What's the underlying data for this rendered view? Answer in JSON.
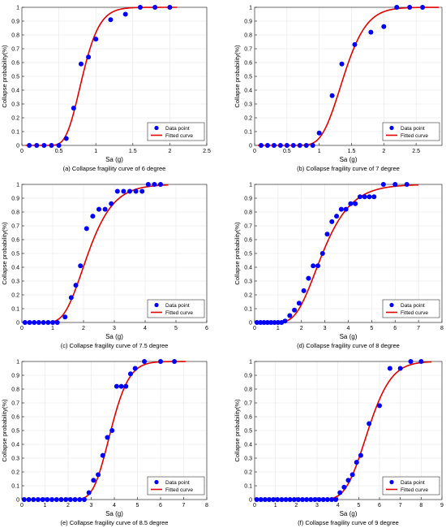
{
  "chart_data": [
    {
      "type": "scatter",
      "caption": "(a) Collapse fragility curve of 6 degree",
      "xlabel": "Sa (g)",
      "ylabel": "Collapse probability(%)",
      "xlim": [
        0,
        2.5
      ],
      "xticks": [
        0,
        0.5,
        1,
        1.5,
        2,
        2.5
      ],
      "xticklabels": [
        "0",
        "0.5",
        "1",
        "1.5",
        "2",
        "2.5"
      ],
      "ylim": [
        0,
        1
      ],
      "yticks": [
        0,
        0.1,
        0.2,
        0.3,
        0.4,
        0.5,
        0.6,
        0.7,
        0.8,
        0.9,
        1
      ],
      "yticklabels": [
        "0",
        "0.1",
        "0.2",
        "0.3",
        "0.4",
        "0.5",
        "0.6",
        "0.7",
        "0.8",
        "0.9",
        "1"
      ],
      "grid": true,
      "legend_position": "bottom-right",
      "series": [
        {
          "name": "Data point",
          "kind": "markers",
          "color": "#0000ff",
          "x": [
            0.1,
            0.2,
            0.3,
            0.4,
            0.5,
            0.6,
            0.7,
            0.8,
            0.9,
            1.0,
            1.2,
            1.4,
            1.6,
            1.8,
            2.0
          ],
          "y": [
            0,
            0,
            0,
            0,
            0,
            0.05,
            0.27,
            0.59,
            0.64,
            0.77,
            0.91,
            0.95,
            1,
            1,
            1
          ]
        },
        {
          "name": "Fitted curve",
          "kind": "line",
          "color": "#e00000",
          "lognormal": {
            "median": 0.82,
            "beta": 0.22,
            "x_start": 0.05,
            "x_end": 2.1
          }
        }
      ]
    },
    {
      "type": "scatter",
      "caption": "(b) Collapse fragility curve of 7 degree",
      "xlabel": "Sa (g)",
      "ylabel": "Collapse probability(%)",
      "xlim": [
        0,
        2.9
      ],
      "xticks": [
        0,
        0.5,
        1,
        1.5,
        2,
        2.5
      ],
      "xticklabels": [
        "0",
        "0.5",
        "1",
        "1.5",
        "2",
        "2.5"
      ],
      "ylim": [
        0,
        1
      ],
      "yticks": [
        0,
        0.1,
        0.2,
        0.3,
        0.4,
        0.5,
        0.6,
        0.7,
        0.8,
        0.9,
        1
      ],
      "yticklabels": [
        "0",
        "0.1",
        "0.2",
        "0.3",
        "0.4",
        "0.5",
        "0.6",
        "0.7",
        "0.8",
        "0.9",
        "1"
      ],
      "grid": true,
      "legend_position": "bottom-right",
      "series": [
        {
          "name": "Data point",
          "kind": "markers",
          "color": "#0000ff",
          "x": [
            0.1,
            0.2,
            0.3,
            0.4,
            0.5,
            0.6,
            0.7,
            0.8,
            0.9,
            1.0,
            1.2,
            1.35,
            1.55,
            1.8,
            2.0,
            2.2,
            2.4,
            2.6
          ],
          "y": [
            0,
            0,
            0,
            0,
            0,
            0,
            0,
            0,
            0,
            0.09,
            0.36,
            0.59,
            0.73,
            0.82,
            0.86,
            1,
            1,
            1
          ]
        },
        {
          "name": "Fitted curve",
          "kind": "line",
          "color": "#e00000",
          "lognormal": {
            "median": 1.38,
            "beta": 0.2,
            "x_start": 0.05,
            "x_end": 2.85
          }
        }
      ]
    },
    {
      "type": "scatter",
      "caption": "(c) Collapse fragility curve of 7.5 degree",
      "xlabel": "Sa (g)",
      "ylabel": "Collapse probability(%)",
      "xlim": [
        0,
        6
      ],
      "xticks": [
        0,
        1,
        2,
        3,
        4,
        5,
        6
      ],
      "xticklabels": [
        "0",
        "1",
        "2",
        "3",
        "4",
        "5",
        "6"
      ],
      "ylim": [
        0,
        1
      ],
      "yticks": [
        0,
        0.1,
        0.2,
        0.3,
        0.4,
        0.5,
        0.6,
        0.7,
        0.8,
        0.9,
        1
      ],
      "yticklabels": [
        "0",
        "0.1",
        "0.2",
        "0.3",
        "0.4",
        "0.5",
        "0.6",
        "0.7",
        "0.8",
        "0.9",
        "1"
      ],
      "grid": true,
      "legend_position": "bottom-right",
      "series": [
        {
          "name": "Data point",
          "kind": "markers",
          "color": "#0000ff",
          "x": [
            0.1,
            0.25,
            0.4,
            0.55,
            0.7,
            0.85,
            1.0,
            1.15,
            1.4,
            1.6,
            1.75,
            1.9,
            2.1,
            2.3,
            2.5,
            2.7,
            2.9,
            3.1,
            3.3,
            3.5,
            3.7,
            3.9,
            4.1,
            4.3,
            4.5
          ],
          "y": [
            0,
            0,
            0,
            0,
            0,
            0,
            0,
            0,
            0.04,
            0.18,
            0.27,
            0.41,
            0.68,
            0.77,
            0.82,
            0.82,
            0.86,
            0.95,
            0.95,
            0.95,
            0.95,
            0.95,
            1,
            1,
            1
          ]
        },
        {
          "name": "Fitted curve",
          "kind": "line",
          "color": "#e00000",
          "lognormal": {
            "median": 2.15,
            "beta": 0.3,
            "x_start": 0.05,
            "x_end": 4.75
          }
        }
      ]
    },
    {
      "type": "scatter",
      "caption": "(d) Collapse fragility curve of 8 degree",
      "xlabel": "Sa (g)",
      "ylabel": "Collapse probability(%)",
      "xlim": [
        0,
        8
      ],
      "xticks": [
        0,
        1,
        2,
        3,
        4,
        5,
        6,
        7,
        8
      ],
      "xticklabels": [
        "0",
        "1",
        "2",
        "3",
        "4",
        "5",
        "6",
        "7",
        "8"
      ],
      "ylim": [
        0,
        1
      ],
      "yticks": [
        0,
        0.1,
        0.2,
        0.3,
        0.4,
        0.5,
        0.6,
        0.7,
        0.8,
        0.9,
        1
      ],
      "yticklabels": [
        "0",
        "0.1",
        "0.2",
        "0.3",
        "0.4",
        "0.5",
        "0.6",
        "0.7",
        "0.8",
        "0.9",
        "1"
      ],
      "grid": true,
      "legend_position": "bottom-right",
      "series": [
        {
          "name": "Data point",
          "kind": "markers",
          "color": "#0000ff",
          "x": [
            0.1,
            0.25,
            0.4,
            0.55,
            0.7,
            0.85,
            1.0,
            1.15,
            1.3,
            1.5,
            1.7,
            1.9,
            2.1,
            2.3,
            2.5,
            2.7,
            2.9,
            3.1,
            3.3,
            3.5,
            3.7,
            3.9,
            4.1,
            4.3,
            4.5,
            4.7,
            4.9,
            5.1,
            5.5,
            6.0,
            6.5
          ],
          "y": [
            0,
            0,
            0,
            0,
            0,
            0,
            0,
            0,
            0.01,
            0.05,
            0.09,
            0.14,
            0.23,
            0.32,
            0.41,
            0.41,
            0.5,
            0.64,
            0.73,
            0.77,
            0.82,
            0.82,
            0.86,
            0.86,
            0.91,
            0.91,
            0.91,
            0.91,
            1,
            1,
            1
          ]
        },
        {
          "name": "Fitted curve",
          "kind": "line",
          "color": "#e00000",
          "lognormal": {
            "median": 2.9,
            "beta": 0.33,
            "x_start": 0.05,
            "x_end": 7.0
          }
        }
      ]
    },
    {
      "type": "scatter",
      "caption": "(e) Collapse fragility curve of 8.5 degree",
      "xlabel": "Sa (g)",
      "ylabel": "Collapse probability(%)",
      "xlim": [
        0,
        8
      ],
      "xticks": [
        0,
        1,
        2,
        3,
        4,
        5,
        6,
        7,
        8
      ],
      "xticklabels": [
        "0",
        "1",
        "2",
        "3",
        "4",
        "5",
        "6",
        "7",
        "8"
      ],
      "ylim": [
        0,
        1
      ],
      "yticks": [
        0,
        0.1,
        0.2,
        0.3,
        0.4,
        0.5,
        0.6,
        0.7,
        0.8,
        0.9,
        1
      ],
      "yticklabels": [
        "0",
        "0.1",
        "0.2",
        "0.3",
        "0.4",
        "0.5",
        "0.6",
        "0.7",
        "0.8",
        "0.9",
        "1"
      ],
      "grid": true,
      "legend_position": "bottom-right",
      "series": [
        {
          "name": "Data point",
          "kind": "markers",
          "color": "#0000ff",
          "x": [
            0.1,
            0.3,
            0.5,
            0.7,
            0.9,
            1.1,
            1.3,
            1.5,
            1.7,
            1.9,
            2.1,
            2.3,
            2.5,
            2.7,
            2.9,
            3.1,
            3.3,
            3.5,
            3.7,
            3.9,
            4.1,
            4.3,
            4.5,
            4.7,
            4.9,
            5.3,
            6.0,
            6.6
          ],
          "y": [
            0,
            0,
            0,
            0,
            0,
            0,
            0,
            0,
            0,
            0,
            0,
            0,
            0,
            0,
            0.05,
            0.14,
            0.18,
            0.32,
            0.45,
            0.5,
            0.82,
            0.82,
            0.82,
            0.91,
            0.95,
            1,
            1,
            1
          ]
        },
        {
          "name": "Fitted curve",
          "kind": "line",
          "color": "#e00000",
          "lognormal": {
            "median": 3.85,
            "beta": 0.16,
            "x_start": 0.05,
            "x_end": 7.1
          }
        }
      ]
    },
    {
      "type": "scatter",
      "caption": "(f) Collapse fragility curve of 9 degree",
      "xlabel": "Sa (g)",
      "ylabel": "Collapse probability(%)",
      "xlim": [
        0,
        9
      ],
      "xticks": [
        0,
        1,
        2,
        3,
        4,
        5,
        6,
        7,
        8,
        9
      ],
      "xticklabels": [
        "0",
        "1",
        "2",
        "3",
        "4",
        "5",
        "6",
        "7",
        "8",
        "9"
      ],
      "ylim": [
        0,
        1
      ],
      "yticks": [
        0,
        0.1,
        0.2,
        0.3,
        0.4,
        0.5,
        0.6,
        0.7,
        0.8,
        0.9,
        1
      ],
      "yticklabels": [
        "0",
        "0.1",
        "0.2",
        "0.3",
        "0.4",
        "0.5",
        "0.6",
        "0.7",
        "0.8",
        "0.9",
        "1"
      ],
      "grid": true,
      "legend_position": "bottom-right",
      "series": [
        {
          "name": "Data point",
          "kind": "markers",
          "color": "#0000ff",
          "x": [
            0.1,
            0.3,
            0.5,
            0.7,
            0.9,
            1.1,
            1.3,
            1.5,
            1.7,
            1.9,
            2.1,
            2.3,
            2.5,
            2.7,
            2.9,
            3.1,
            3.3,
            3.5,
            3.7,
            3.9,
            4.1,
            4.3,
            4.5,
            4.7,
            4.9,
            5.1,
            5.5,
            6.0,
            6.5,
            7.0,
            7.5,
            8.0
          ],
          "y": [
            0,
            0,
            0,
            0,
            0,
            0,
            0,
            0,
            0,
            0,
            0,
            0,
            0,
            0,
            0,
            0,
            0,
            0,
            0,
            0,
            0.05,
            0.09,
            0.14,
            0.18,
            0.27,
            0.32,
            0.55,
            0.68,
            0.95,
            0.95,
            1,
            1
          ]
        },
        {
          "name": "Fitted curve",
          "kind": "line",
          "color": "#e00000",
          "lognormal": {
            "median": 5.45,
            "beta": 0.16,
            "x_start": 0.05,
            "x_end": 8.5
          }
        }
      ]
    }
  ]
}
